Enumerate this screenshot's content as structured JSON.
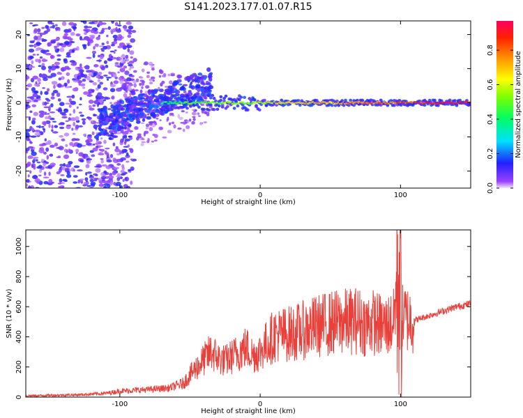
{
  "title": "S141.2023.177.01.07.R15",
  "colors": {
    "snr_line": "#e8403a",
    "axis": "#000000"
  },
  "chart_data": [
    {
      "type": "heatmap",
      "xlabel": "Height of straight line (km)",
      "ylabel": "Frequency (Hz)",
      "xlim": [
        -167,
        150
      ],
      "ylim": [
        -25,
        24
      ],
      "x_ticks": [
        -100,
        0,
        100
      ],
      "y_ticks": [
        -20,
        -10,
        0,
        10,
        20
      ],
      "colorbar": {
        "label": "Normalized spectral amplitude",
        "range": [
          0.0,
          0.97
        ],
        "ticks": [
          0.0,
          0.2,
          0.4,
          0.6,
          0.8
        ],
        "colormap": "hsv (purple → blue → cyan → green → yellow → orange → red)"
      },
      "ridges": [
        {
          "x_from": -70,
          "x_to": 150,
          "freq_hz": 0,
          "amplitude_from": 0.4,
          "amplitude_to": 0.95
        },
        {
          "x_from": -115,
          "x_to": -35,
          "freq_hz_from": -6,
          "freq_hz_to": 6,
          "amplitude": 0.15
        }
      ],
      "noise_region": {
        "x_from": -167,
        "x_to": -100,
        "freq_hz_range": [
          -25,
          24
        ],
        "amplitude": 0.1
      }
    },
    {
      "type": "line",
      "xlabel": "Height of straight line (km)",
      "ylabel": "SNR (10 * v/v)",
      "xlim": [
        -167,
        150
      ],
      "ylim": [
        0,
        1110
      ],
      "x_ticks": [
        -100,
        0,
        100
      ],
      "y_ticks": [
        0,
        200,
        400,
        600,
        800,
        1000
      ],
      "series": [
        {
          "x": [
            -167,
            -150,
            -130,
            -110,
            -100,
            -80,
            -65,
            -55,
            -48,
            -40,
            -35,
            -30,
            -25,
            -20,
            -15,
            -10,
            -5,
            0,
            5,
            10,
            20,
            30,
            40,
            50,
            60,
            70,
            75,
            80,
            85,
            90,
            95,
            99,
            100,
            101,
            103,
            105,
            110,
            120,
            130,
            140,
            150
          ],
          "y": [
            8,
            12,
            15,
            25,
            40,
            50,
            60,
            90,
            170,
            250,
            300,
            260,
            240,
            270,
            300,
            330,
            280,
            300,
            360,
            410,
            420,
            440,
            470,
            490,
            500,
            510,
            480,
            500,
            480,
            470,
            500,
            900,
            700,
            520,
            530,
            520,
            510,
            540,
            570,
            600,
            620
          ]
        }
      ]
    }
  ]
}
